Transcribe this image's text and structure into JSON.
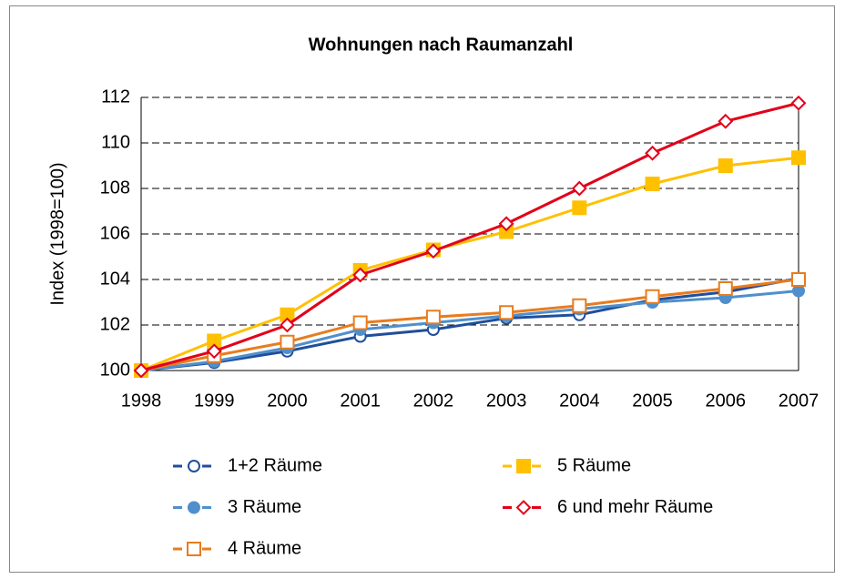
{
  "chart_data": {
    "type": "line",
    "title": "Wohnungen nach Raumanzahl",
    "y_label": "Index (1998=100)",
    "categories": [
      "1998",
      "1999",
      "2000",
      "2001",
      "2002",
      "2003",
      "2004",
      "2005",
      "2006",
      "2007"
    ],
    "ylim": [
      100,
      112
    ],
    "yticks": [
      100,
      102,
      104,
      106,
      108,
      110,
      112
    ],
    "grid": true,
    "series": [
      {
        "name": "1+2 Räume",
        "color": "#1f4e9c",
        "marker": "circle",
        "marker_filled": false,
        "values": [
          100,
          100.35,
          100.85,
          101.5,
          101.8,
          102.3,
          102.45,
          103.1,
          103.45,
          104.05
        ]
      },
      {
        "name": "3 Räume",
        "color": "#4f8fcc",
        "marker": "circle",
        "marker_filled": true,
        "values": [
          100,
          100.4,
          101.0,
          101.8,
          102.1,
          102.4,
          102.7,
          103.0,
          103.2,
          103.5
        ]
      },
      {
        "name": "4 Räume",
        "color": "#e87c1e",
        "marker": "square",
        "marker_filled": false,
        "values": [
          100,
          100.65,
          101.25,
          102.1,
          102.35,
          102.55,
          102.85,
          103.25,
          103.6,
          104.0
        ]
      },
      {
        "name": "5 Räume",
        "color": "#ffc000",
        "marker": "square",
        "marker_filled": true,
        "values": [
          100,
          101.3,
          102.45,
          104.4,
          105.3,
          106.1,
          107.15,
          108.2,
          109.0,
          109.35
        ]
      },
      {
        "name": "6 und mehr Räume",
        "color": "#e2001a",
        "marker": "diamond",
        "marker_filled": false,
        "values": [
          100,
          100.85,
          102.0,
          104.2,
          105.25,
          106.45,
          108.0,
          109.55,
          110.95,
          111.75
        ]
      }
    ]
  }
}
